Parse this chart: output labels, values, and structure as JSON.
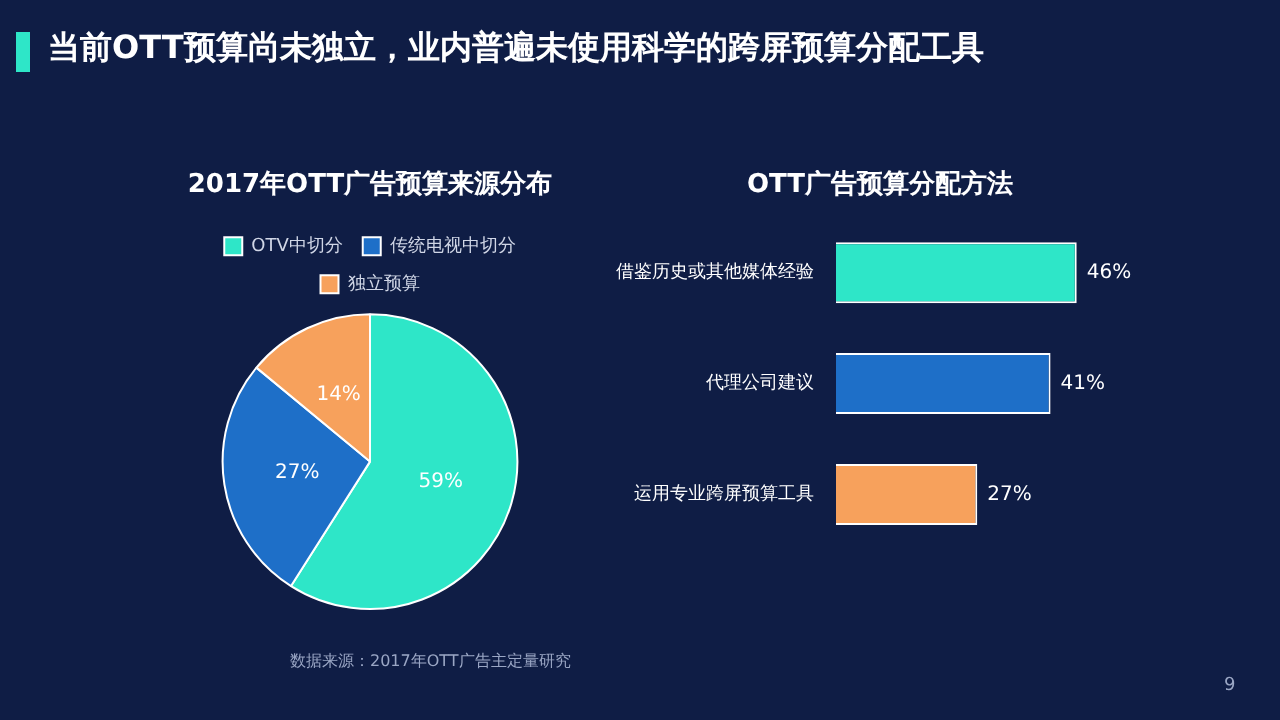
{
  "chart_data": [
    {
      "type": "pie",
      "title": "2017年OTT广告预算来源分布",
      "categories": [
        "OTV中切分",
        "传统电视中切分",
        "独立预算"
      ],
      "values": [
        59,
        27,
        14
      ],
      "colors": [
        "#2ee6c8",
        "#1e6fc8",
        "#f7a15c"
      ],
      "value_labels": [
        "59%",
        "27%",
        "14%"
      ],
      "legend": "top",
      "annotations": [
        "当前OTT预算尚未独立，业内普遍未使用科学的跨屏预算分配工具",
        "数据来源：2017年OTT广告主定量研究"
      ]
    },
    {
      "type": "bar",
      "orientation": "horizontal",
      "title": "OTT广告预算分配方法",
      "categories": [
        "借鉴历史或其他媒体经验",
        "代理公司建议",
        "运用专业跨屏预算工具"
      ],
      "values": [
        46,
        41,
        27
      ],
      "colors": [
        "#2ee6c8",
        "#1e6fc8",
        "#f7a15c"
      ],
      "value_labels": [
        "46%",
        "41%",
        "27%"
      ],
      "legend": false,
      "annotations": [
        "9"
      ]
    }
  ]
}
